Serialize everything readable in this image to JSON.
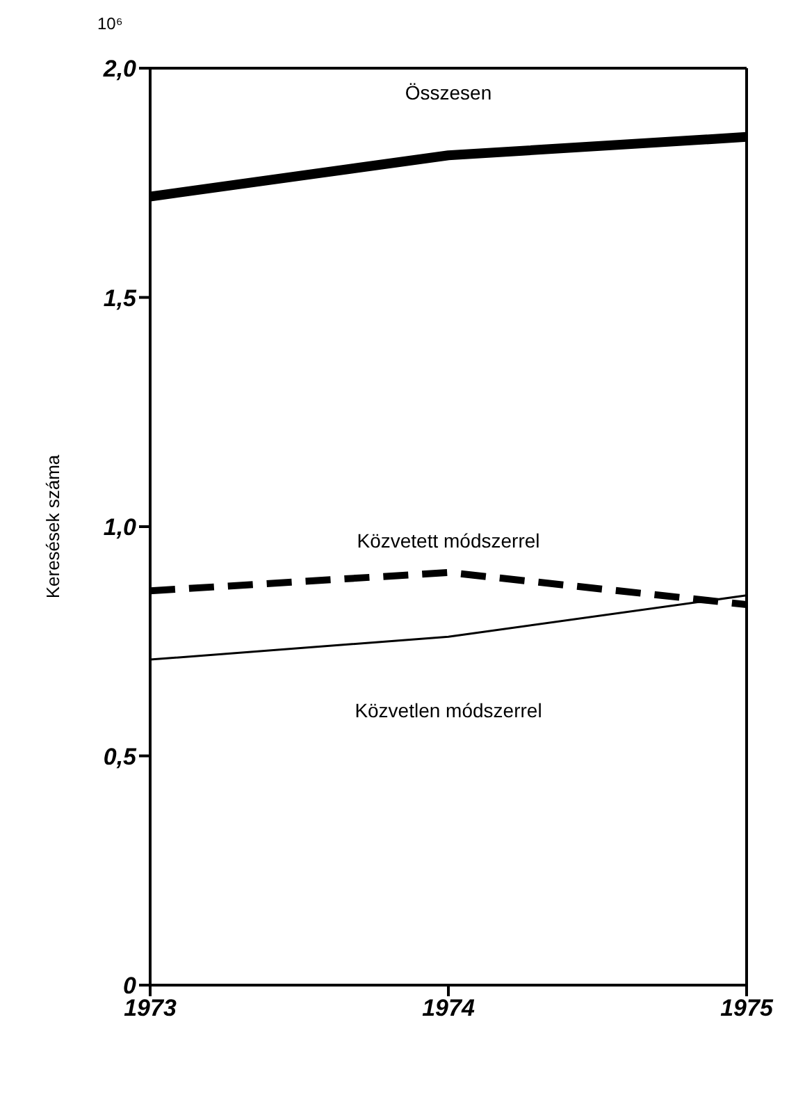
{
  "chart_data": {
    "type": "line",
    "ylabel": "Keresések száma",
    "annotations": [
      "10⁶"
    ],
    "x": [
      1973,
      1974,
      1975
    ],
    "xlim": [
      1973,
      1975
    ],
    "xticks": [
      1973,
      1974,
      1975
    ],
    "ylim": [
      0,
      2
    ],
    "yticks": [
      {
        "value": 0,
        "label": "0"
      },
      {
        "value": 0.5,
        "label": "0,5"
      },
      {
        "value": 1,
        "label": "1,0"
      },
      {
        "value": 1.5,
        "label": "1,5"
      },
      {
        "value": 2,
        "label": "2,0"
      }
    ],
    "grid": false,
    "legend": false,
    "marker": "none",
    "line_style": "solid",
    "series": [
      {
        "name": "Összesen",
        "color": "#000000",
        "values": [
          1.72,
          1.81,
          1.85
        ]
      },
      {
        "name": "Közvetett módszerrel",
        "color": "#000000",
        "line_style": "dashed",
        "values": [
          0.86,
          0.9,
          0.83
        ]
      },
      {
        "name": "Közvetlen módszerrel",
        "color": "#000000",
        "values": [
          0.71,
          0.76,
          0.85
        ]
      }
    ]
  }
}
